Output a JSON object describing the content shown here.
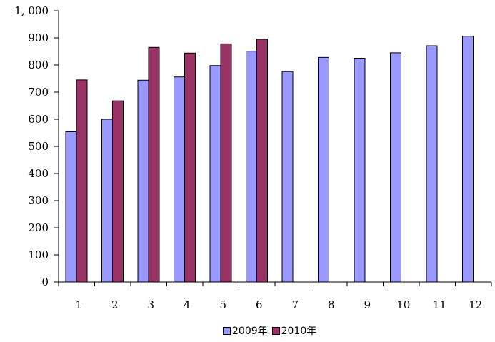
{
  "chart_data": {
    "type": "bar",
    "categories": [
      "1",
      "2",
      "3",
      "4",
      "5",
      "6",
      "7",
      "8",
      "9",
      "10",
      "11",
      "12"
    ],
    "series": [
      {
        "name": "2009年",
        "color": "#9999ff",
        "values": [
          554,
          600,
          744,
          756,
          798,
          851,
          776,
          828,
          825,
          845,
          871,
          906
        ]
      },
      {
        "name": "2010年",
        "color": "#993366",
        "values": [
          745,
          668,
          865,
          844,
          878,
          895,
          null,
          null,
          null,
          null,
          null,
          null
        ]
      }
    ],
    "y_ticks": [
      "0",
      "100",
      "200",
      "300",
      "400",
      "500",
      "600",
      "700",
      "800",
      "900",
      "1, 000"
    ],
    "ylim": [
      0,
      1000
    ],
    "grid": false,
    "legend_position": "bottom",
    "title": "",
    "xlabel": "",
    "ylabel": ""
  }
}
